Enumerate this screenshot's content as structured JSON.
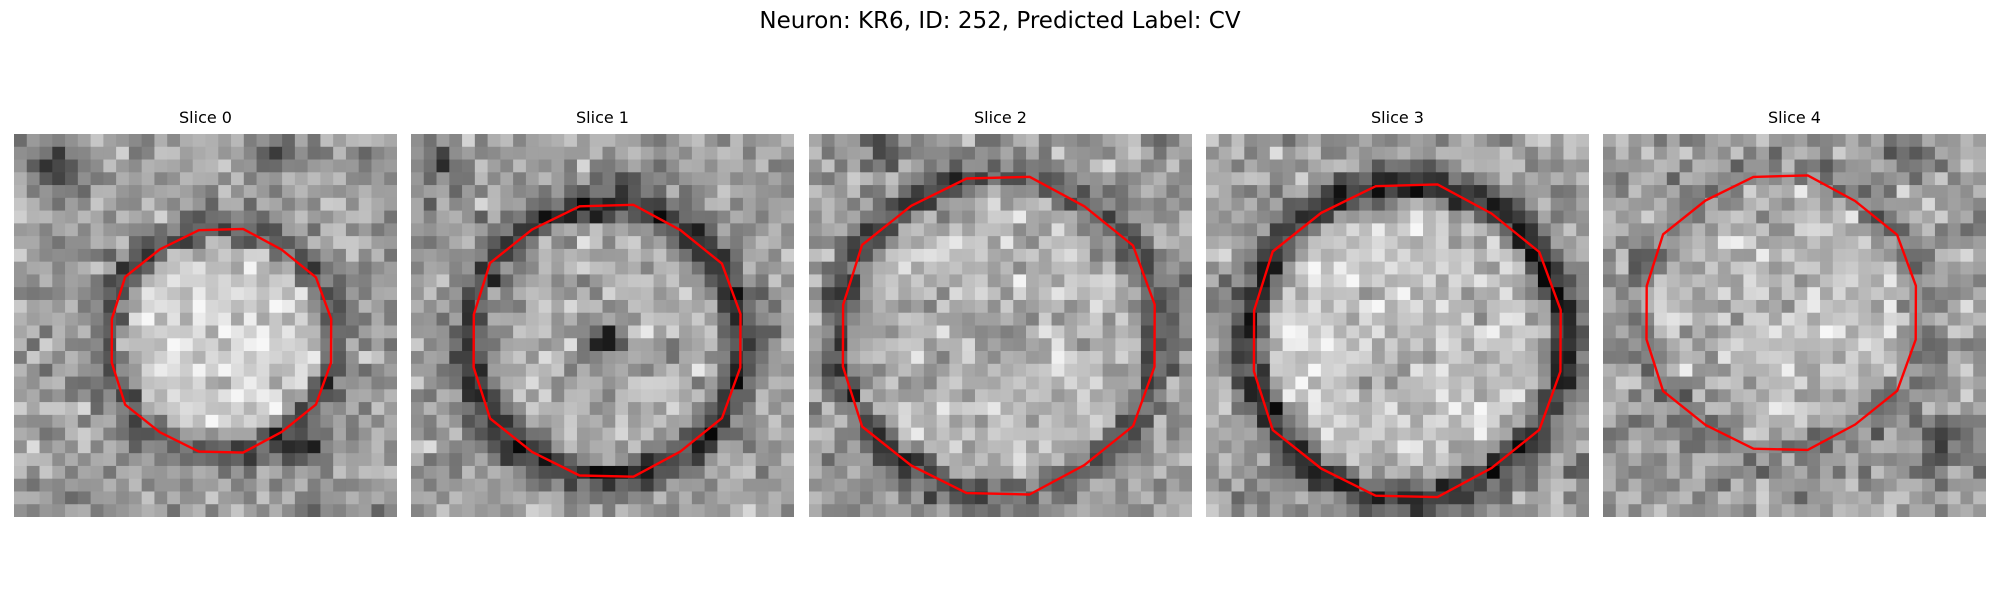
{
  "figure": {
    "title": "Neuron: KR6, ID: 252, Predicted Label: CV",
    "outline_color": "#ff0000",
    "panels": [
      {
        "title": "Slice 0"
      },
      {
        "title": "Slice 1"
      },
      {
        "title": "Slice 2"
      },
      {
        "title": "Slice 3"
      },
      {
        "title": "Slice 4"
      }
    ]
  }
}
